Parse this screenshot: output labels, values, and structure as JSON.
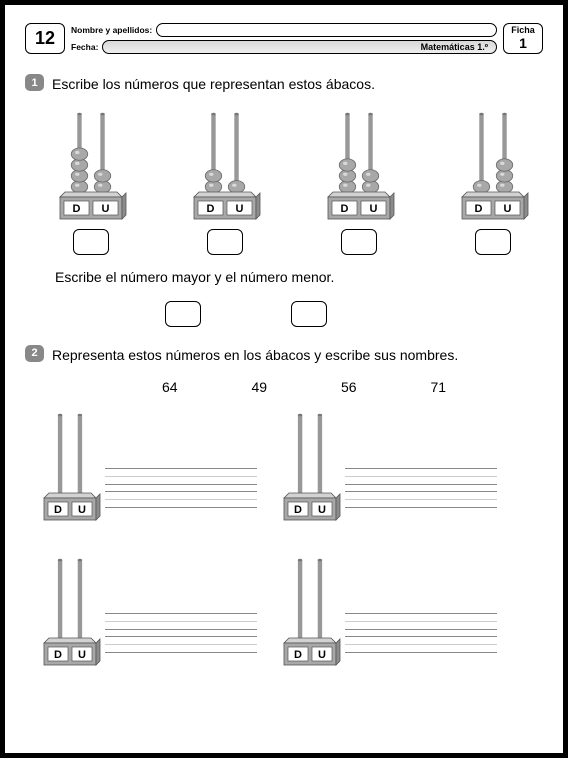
{
  "header": {
    "page_number": "12",
    "name_label": "Nombre y apellidos:",
    "date_label": "Fecha:",
    "subject": "Matemáticas 1.º",
    "ficha_label": "Ficha",
    "ficha_number": "1"
  },
  "exercise1": {
    "bullet": "1",
    "prompt": "Escribe los números que representan estos ábacos.",
    "sub_prompt": "Escribe el número mayor y el número menor.",
    "abaci": [
      {
        "d_beads": 4,
        "u_beads": 2
      },
      {
        "d_beads": 2,
        "u_beads": 1
      },
      {
        "d_beads": 3,
        "u_beads": 2
      },
      {
        "d_beads": 1,
        "u_beads": 3
      }
    ],
    "labels": {
      "d": "D",
      "u": "U"
    },
    "colors": {
      "bead": "#a8a8a8",
      "bead_edge": "#6f6f6f",
      "rod": "#989898",
      "base_top": "#d2d2d2",
      "base_front": "#a8a8a8",
      "base_label_bg": "#ffffff",
      "base_edge": "#555555"
    }
  },
  "exercise2": {
    "bullet": "2",
    "prompt": "Representa estos números en los ábacos y escribe sus nombres.",
    "numbers": [
      "64",
      "49",
      "56",
      "71"
    ],
    "labels": {
      "d": "D",
      "u": "U"
    }
  }
}
